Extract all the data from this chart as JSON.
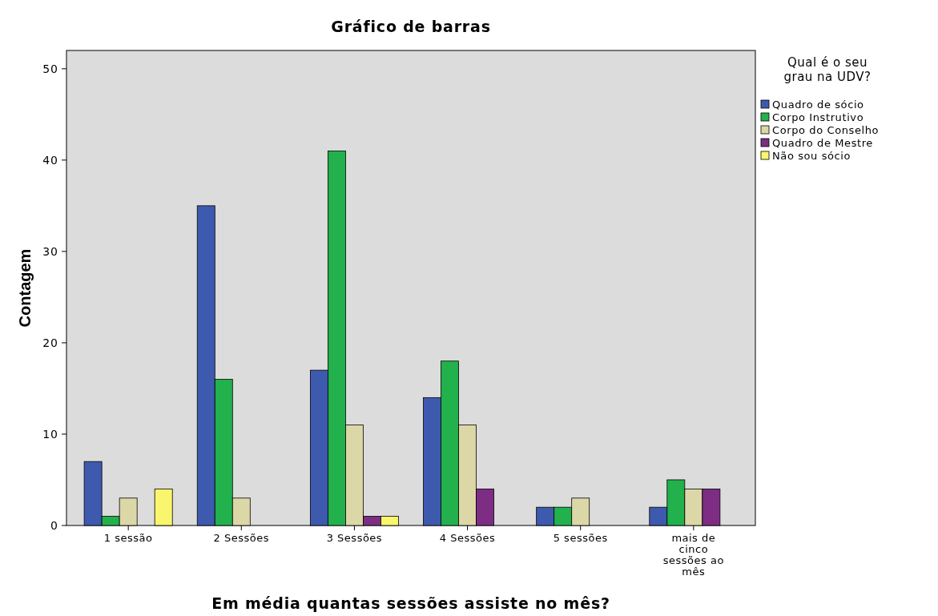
{
  "chart_data": {
    "type": "bar",
    "title": "Gráfico de barras",
    "xlabel": "Em média quantas sessões assiste no mês?",
    "ylabel": "Contagem",
    "legend_title": "Qual é o seu grau na UDV?",
    "categories": [
      "1 sessão",
      "2 Sessões",
      "3 Sessões",
      "4 Sessões",
      "5 sessões",
      "mais de cinco sessões ao mês"
    ],
    "series": [
      {
        "name": "Quadro de sócio",
        "color": "#3d5aae",
        "values": [
          7,
          35,
          17,
          14,
          2,
          2
        ]
      },
      {
        "name": "Corpo Instrutivo",
        "color": "#22b14c",
        "values": [
          1,
          16,
          41,
          18,
          2,
          5
        ]
      },
      {
        "name": "Corpo do Conselho",
        "color": "#dcd7a6",
        "values": [
          3,
          3,
          11,
          11,
          3,
          4
        ]
      },
      {
        "name": "Quadro de Mestre",
        "color": "#7d2d84",
        "values": [
          null,
          null,
          1,
          4,
          null,
          4
        ]
      },
      {
        "name": "Não sou sócio",
        "color": "#f9f66e",
        "values": [
          4,
          null,
          1,
          null,
          null,
          null
        ]
      }
    ],
    "ylim": [
      0,
      52
    ],
    "yticks": [
      0,
      10,
      20,
      30,
      40,
      50
    ],
    "grid": false,
    "legend": "right"
  }
}
